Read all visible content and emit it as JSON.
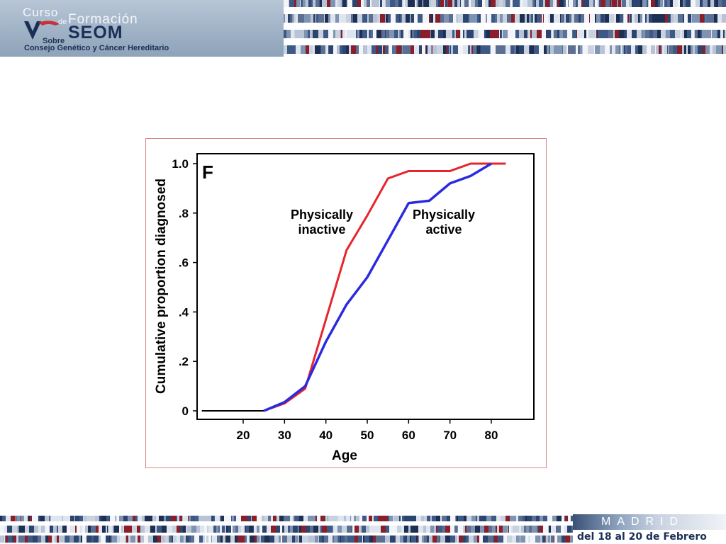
{
  "header": {
    "logo": {
      "curso": "Curso",
      "de": "de",
      "formacion": "Formación",
      "sobre": "Sobre",
      "seom": "SEOM",
      "subtitle": "Consejo Genético y Cáncer Hereditario"
    }
  },
  "footer": {
    "city": "MADRID",
    "dates": "del 18 al 20 de Febrero"
  },
  "colors": {
    "inactive": "#e8242c",
    "active": "#2a2ae0",
    "baseline": "#000000",
    "frame_border": "#d9868a"
  },
  "chart_data": {
    "type": "line",
    "panel_label": "F",
    "xlabel": "Age",
    "ylabel": "Cumulative proportion diagnosed",
    "xlim": [
      10,
      90
    ],
    "ylim": [
      0,
      1.0
    ],
    "xticks": [
      20,
      30,
      40,
      50,
      60,
      70,
      80
    ],
    "yticks": [
      0,
      0.2,
      0.4,
      0.6,
      0.8,
      1.0
    ],
    "ytick_labels": [
      "0",
      ".2",
      ".4",
      ".6",
      ".8",
      "1.0"
    ],
    "grid": false,
    "series": [
      {
        "name": "Physically inactive",
        "label_lines": [
          "Physically",
          "inactive"
        ],
        "color": "#e8242c",
        "points": [
          [
            10,
            0
          ],
          [
            25,
            0
          ],
          [
            30,
            0.03
          ],
          [
            35,
            0.09
          ],
          [
            40,
            0.37
          ],
          [
            45,
            0.65
          ],
          [
            50,
            0.79
          ],
          [
            55,
            0.94
          ],
          [
            60,
            0.97
          ],
          [
            65,
            0.97
          ],
          [
            70,
            0.97
          ],
          [
            75,
            1.0
          ],
          [
            80,
            1.0
          ],
          [
            83.5,
            1.0
          ]
        ]
      },
      {
        "name": "Physically active",
        "label_lines": [
          "Physically",
          "active"
        ],
        "color": "#2a2ae0",
        "points": [
          [
            25,
            0
          ],
          [
            30,
            0.035
          ],
          [
            35,
            0.1
          ],
          [
            40,
            0.28
          ],
          [
            45,
            0.43
          ],
          [
            50,
            0.54
          ],
          [
            55,
            0.69
          ],
          [
            60,
            0.84
          ],
          [
            65,
            0.85
          ],
          [
            70,
            0.92
          ],
          [
            75,
            0.95
          ],
          [
            80,
            1.0
          ]
        ]
      }
    ]
  }
}
